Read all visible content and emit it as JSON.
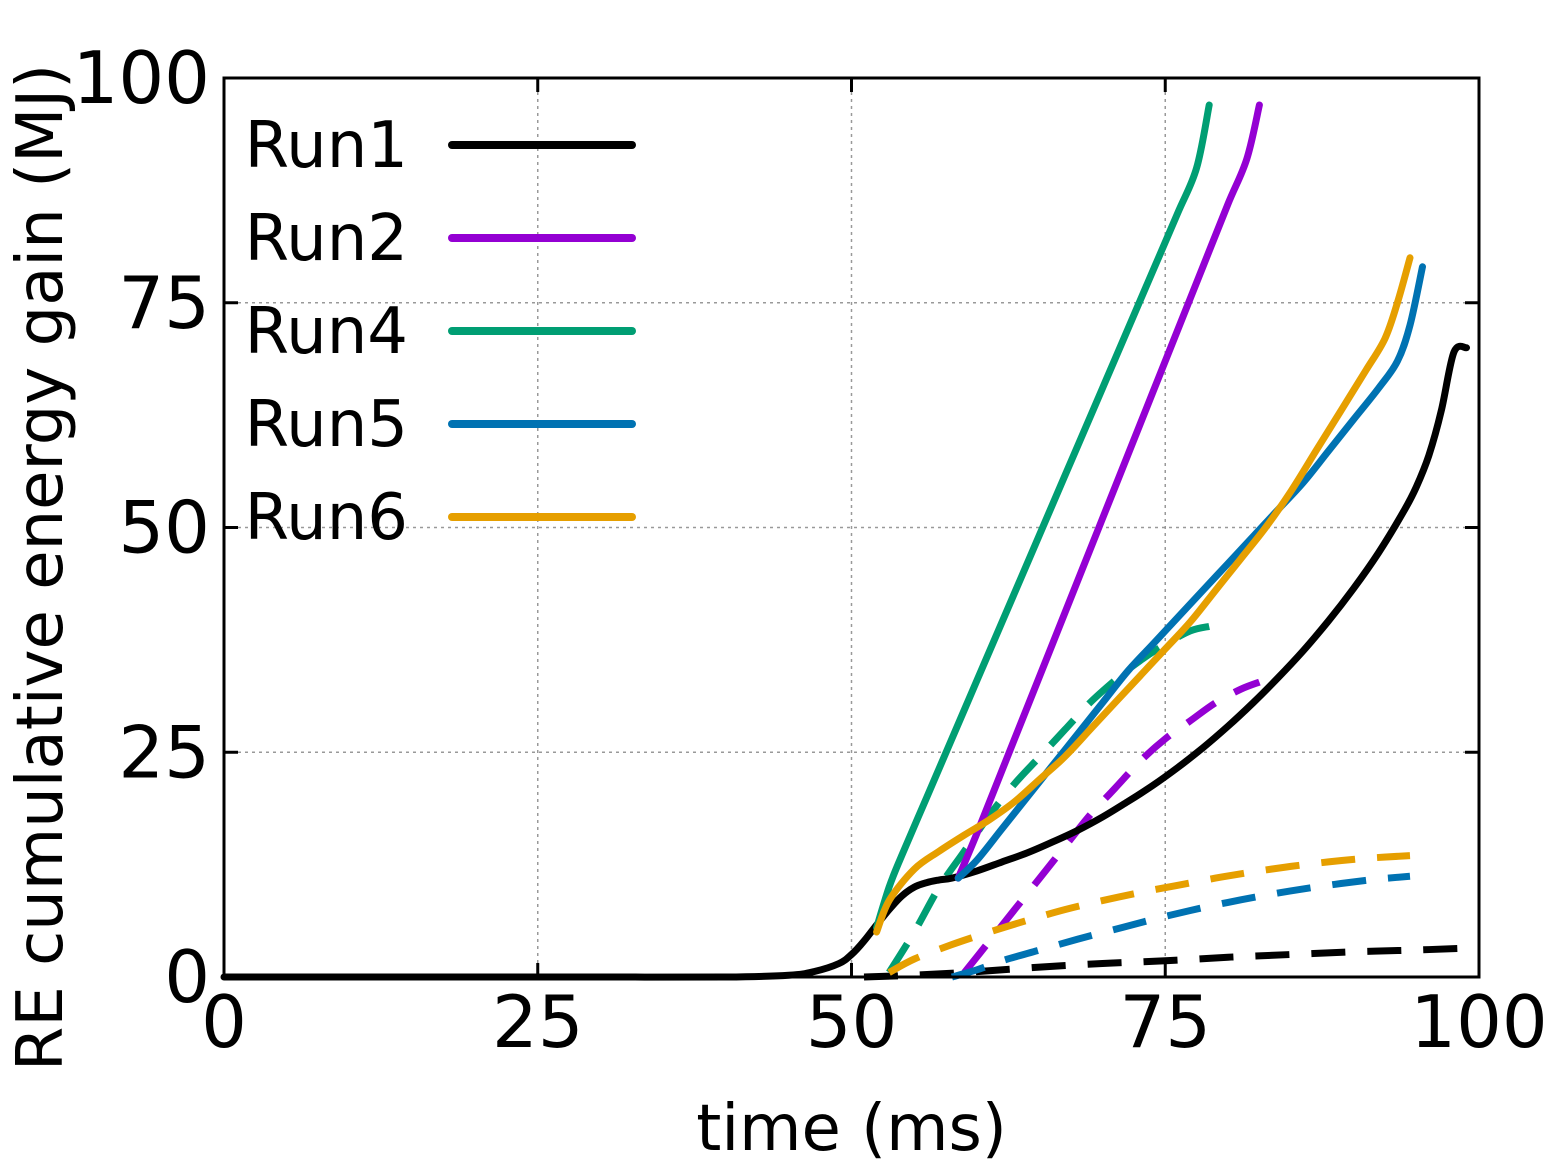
{
  "chart_data": {
    "type": "line",
    "title": "",
    "xlabel": "time (ms)",
    "ylabel": "RE cumulative energy gain (MJ)",
    "xlim": [
      0,
      100
    ],
    "ylim": [
      0,
      100
    ],
    "xticks": [
      "0",
      "25",
      "50",
      "75",
      "100"
    ],
    "yticks": [
      "0",
      "25",
      "50",
      "75",
      "100"
    ],
    "grid": true,
    "legend_position": "top-left",
    "series": [
      {
        "name": "Run1",
        "color": "#000000",
        "style": "solid",
        "x": [
          0,
          10,
          20,
          30,
          40,
          45,
          47,
          49,
          50,
          51,
          52,
          53,
          54,
          55,
          56,
          57,
          58,
          60,
          62,
          64,
          66,
          68,
          70,
          72,
          74,
          76,
          78,
          80,
          82,
          84,
          86,
          88,
          90,
          92,
          94,
          95,
          96,
          97,
          98,
          99
        ],
        "y": [
          0,
          0,
          0,
          0,
          0,
          0.2,
          0.6,
          1.5,
          2.5,
          4,
          5.8,
          7.5,
          9,
          10,
          10.5,
          10.8,
          11,
          11.8,
          12.8,
          13.8,
          15,
          16.3,
          17.8,
          19.5,
          21.3,
          23.3,
          25.5,
          27.9,
          30.5,
          33.3,
          36.3,
          39.6,
          43.2,
          47.2,
          51.8,
          54.5,
          58,
          63,
          69.5,
          70
        ]
      },
      {
        "name": "Run1 (dashed)",
        "color": "#000000",
        "style": "dashed",
        "x": [
          51,
          55,
          60,
          65,
          70,
          75,
          80,
          85,
          90,
          95,
          99
        ],
        "y": [
          0,
          0.2,
          0.6,
          1.1,
          1.5,
          1.8,
          2.2,
          2.5,
          2.8,
          3.0,
          3.2
        ]
      },
      {
        "name": "Run2",
        "color": "#9400d3",
        "style": "solid",
        "x": [
          58.5,
          60,
          62,
          64,
          66,
          68,
          70,
          72,
          74,
          76,
          78,
          80,
          81.5,
          82.5
        ],
        "y": [
          11,
          16,
          23,
          30,
          37,
          44,
          51,
          58,
          65,
          72,
          79,
          86,
          91,
          97
        ]
      },
      {
        "name": "Run2 (dashed)",
        "color": "#9400d3",
        "style": "dashed",
        "x": [
          59,
          61,
          63,
          65,
          67,
          69,
          71,
          73,
          75,
          77,
          79,
          81,
          82.5
        ],
        "y": [
          0.5,
          4,
          7.5,
          11,
          14.5,
          18,
          21,
          24,
          26.5,
          28.5,
          30.5,
          32,
          32.8
        ]
      },
      {
        "name": "Run4",
        "color": "#009e73",
        "style": "solid",
        "x": [
          52,
          53,
          54,
          56,
          58,
          60,
          62,
          64,
          66,
          68,
          70,
          72,
          74,
          76,
          77.5,
          78.5
        ],
        "y": [
          5.5,
          10,
          13.5,
          20,
          26.5,
          33,
          39.5,
          46,
          52.5,
          59,
          65.5,
          72,
          78.5,
          85,
          90,
          97
        ]
      },
      {
        "name": "Run4 (dashed)",
        "color": "#009e73",
        "style": "dashed",
        "x": [
          53,
          55,
          57,
          59,
          61,
          63,
          65,
          67,
          69,
          71,
          73,
          75,
          77,
          78.5
        ],
        "y": [
          0.5,
          5,
          10,
          14,
          18,
          21.5,
          24.5,
          27.5,
          30.5,
          33,
          35.2,
          37,
          38.5,
          39
        ]
      },
      {
        "name": "Run5",
        "color": "#0072b2",
        "style": "solid",
        "x": [
          58.5,
          60,
          62,
          64,
          66,
          68,
          70,
          72,
          74,
          76,
          78,
          80,
          82,
          84,
          86,
          88,
          90,
          92,
          93.5,
          94.5,
          95.5
        ],
        "y": [
          11,
          13,
          16.5,
          20,
          23.5,
          27,
          30.5,
          34,
          37,
          40,
          43,
          46,
          49,
          52,
          55,
          58.5,
          62,
          65.5,
          68.5,
          72.5,
          79
        ]
      },
      {
        "name": "Run5 (dashed)",
        "color": "#0072b2",
        "style": "dashed",
        "x": [
          58,
          60,
          62,
          65,
          68,
          71,
          74,
          77,
          80,
          83,
          86,
          89,
          92,
          94.5
        ],
        "y": [
          0,
          0.8,
          1.8,
          3.0,
          4.2,
          5.3,
          6.4,
          7.4,
          8.3,
          9.1,
          9.8,
          10.4,
          10.9,
          11.2
        ]
      },
      {
        "name": "Run6",
        "color": "#e69f00",
        "style": "solid",
        "x": [
          52,
          53,
          55,
          57,
          59,
          61,
          63,
          65,
          67,
          69,
          71,
          73,
          75,
          77,
          79,
          81,
          83,
          85,
          87,
          89,
          91,
          92.5,
          93.5,
          94.5
        ],
        "y": [
          5,
          8.5,
          12,
          14,
          15.8,
          17.5,
          19.5,
          22,
          24.5,
          27.5,
          30.5,
          33.5,
          36.5,
          39.5,
          43,
          46.5,
          50,
          54,
          58.5,
          63,
          67.5,
          71,
          75,
          80
        ]
      },
      {
        "name": "Run6 (dashed)",
        "color": "#e69f00",
        "style": "dashed",
        "x": [
          53,
          55,
          58,
          61,
          64,
          67,
          70,
          73,
          76,
          79,
          82,
          85,
          88,
          91,
          94.5
        ],
        "y": [
          0.5,
          2.0,
          3.6,
          5.0,
          6.3,
          7.5,
          8.5,
          9.4,
          10.2,
          11.0,
          11.7,
          12.3,
          12.8,
          13.2,
          13.5
        ]
      }
    ],
    "legend": [
      "Run1",
      "Run2",
      "Run4",
      "Run5",
      "Run6"
    ]
  }
}
